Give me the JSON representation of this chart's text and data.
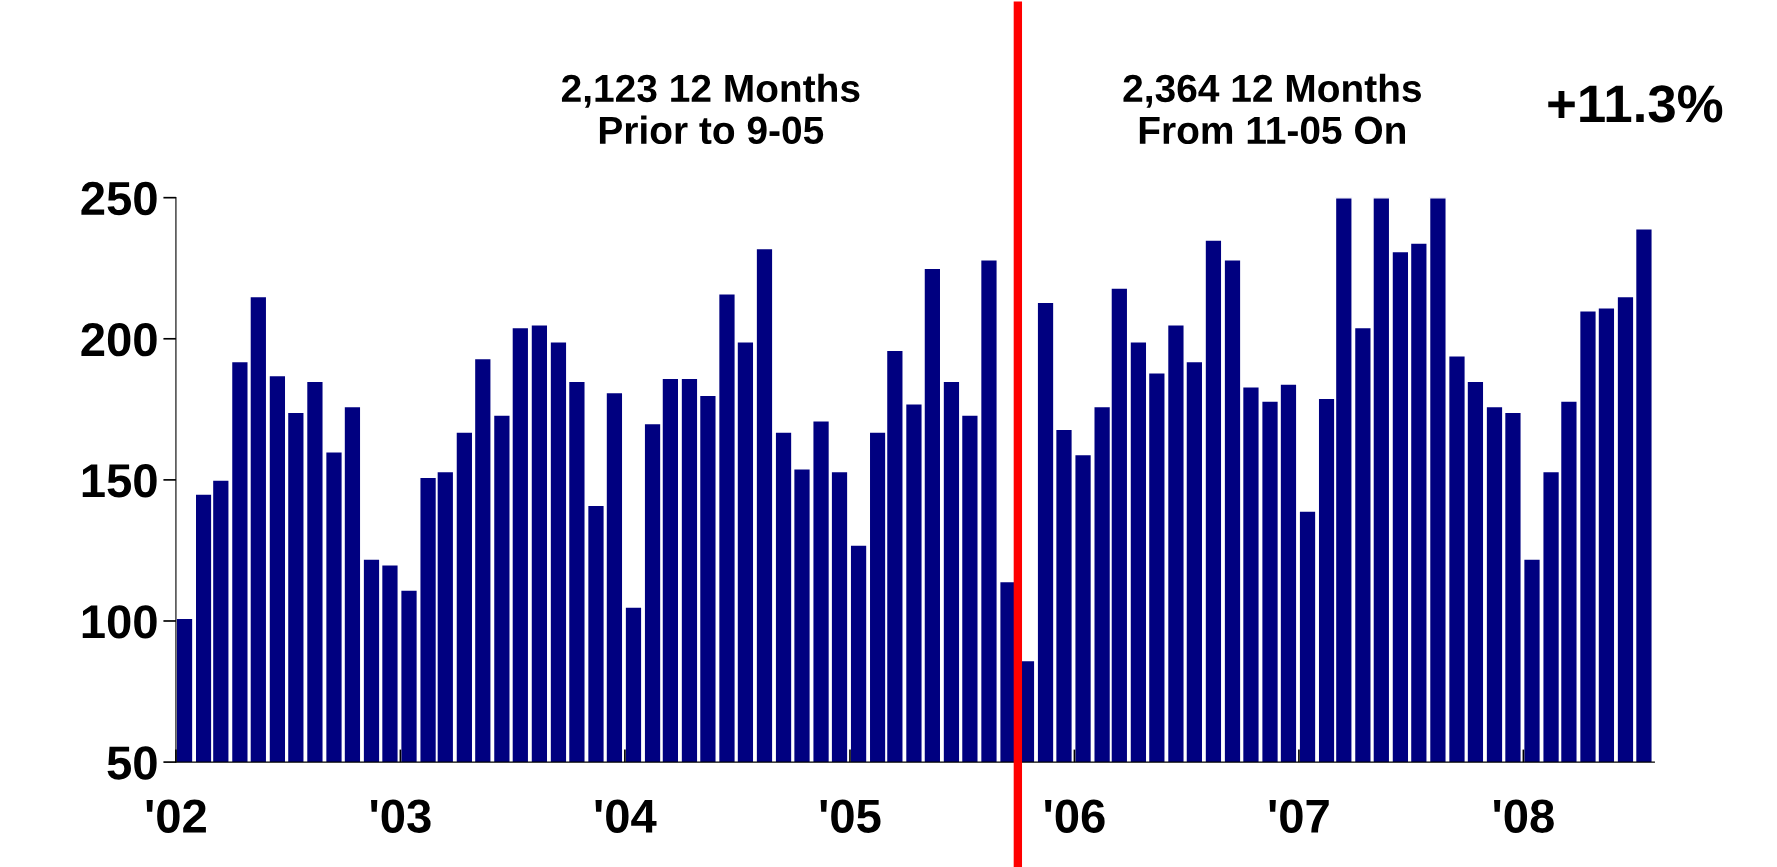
{
  "chart_data": {
    "type": "bar",
    "x": [
      "2002-01-15",
      "2002-02-15",
      "2002-03-15",
      "2002-04-15",
      "2002-05-15",
      "2002-06-15",
      "2002-07-15",
      "2002-08-15",
      "2002-09-15",
      "2002-10-15",
      "2002-11-15",
      "2002-12-15",
      "2003-01-15",
      "2003-02-15",
      "2003-03-15",
      "2003-04-15",
      "2003-05-15",
      "2003-06-15",
      "2003-07-15",
      "2003-08-15",
      "2003-09-15",
      "2003-10-15",
      "2003-11-15",
      "2003-12-15",
      "2004-01-15",
      "2004-02-15",
      "2004-03-15",
      "2004-04-15",
      "2004-05-15",
      "2004-06-15",
      "2004-07-15",
      "2004-08-15",
      "2004-09-15",
      "2004-10-15",
      "2004-11-15",
      "2004-12-15",
      "2005-01-15",
      "2005-02-15",
      "2005-03-15",
      "2005-04-15",
      "2005-05-15",
      "2005-06-15",
      "2005-07-15",
      "2005-08-15",
      "2005-09-15",
      "2005-10-15",
      "2005-11-15",
      "2005-12-15",
      "2006-01-15",
      "2006-02-15",
      "2006-03-15",
      "2006-04-15",
      "2006-05-15",
      "2006-06-15",
      "2006-07-15",
      "2006-08-15",
      "2006-09-15",
      "2006-10-15",
      "2006-11-15",
      "2006-12-15",
      "2007-01-15",
      "2007-02-15",
      "2007-03-15",
      "2007-04-15",
      "2007-05-15",
      "2007-06-15",
      "2007-07-15",
      "2007-08-15",
      "2007-09-15",
      "2007-10-15",
      "2007-11-15",
      "2007-12-15",
      "2008-01-15",
      "2008-02-15",
      "2008-03-15",
      "2008-04-15",
      "2008-05-15",
      "2008-06-15",
      "2008-07-15"
    ],
    "values": [
      101,
      145,
      150,
      192,
      215,
      187,
      174,
      185,
      160,
      176,
      122,
      120,
      111,
      151,
      153,
      167,
      193,
      173,
      204,
      205,
      199,
      185,
      141,
      181,
      105,
      170,
      186,
      186,
      180,
      216,
      199,
      232,
      167,
      154,
      171,
      153,
      127,
      167,
      196,
      177,
      225,
      185,
      173,
      228,
      114,
      86,
      213,
      168,
      159,
      176,
      218,
      199,
      188,
      205,
      192,
      235,
      228,
      183,
      178,
      184,
      139,
      179,
      250,
      204,
      250,
      231,
      234,
      250,
      194,
      185,
      176,
      174,
      122,
      153,
      178,
      210,
      211,
      215,
      239
    ],
    "color": "#000080",
    "ylim": [
      50,
      250
    ],
    "yticks": [
      50,
      100,
      150,
      200,
      250
    ],
    "xlim": [
      "2002-01-01",
      "2008-08-01"
    ],
    "xticks": [
      {
        "value": "2002-01-01",
        "label": "'02"
      },
      {
        "value": "2003-01-01",
        "label": "'03"
      },
      {
        "value": "2004-01-01",
        "label": "'04"
      },
      {
        "value": "2005-01-01",
        "label": "'05"
      },
      {
        "value": "2006-01-01",
        "label": "'06"
      },
      {
        "value": "2007-01-01",
        "label": "'07"
      },
      {
        "value": "2008-01-01",
        "label": "'08"
      }
    ],
    "ref_lines": [
      {
        "axis": "x",
        "value": "2005-10-01",
        "color": "#ff0000"
      }
    ],
    "annotations": [
      "2,123 12 Months\nPrior to 9-05",
      "2,364 12 Months\nFrom 11-05 On",
      "+11.3%"
    ],
    "grid": false,
    "legend": false
  }
}
